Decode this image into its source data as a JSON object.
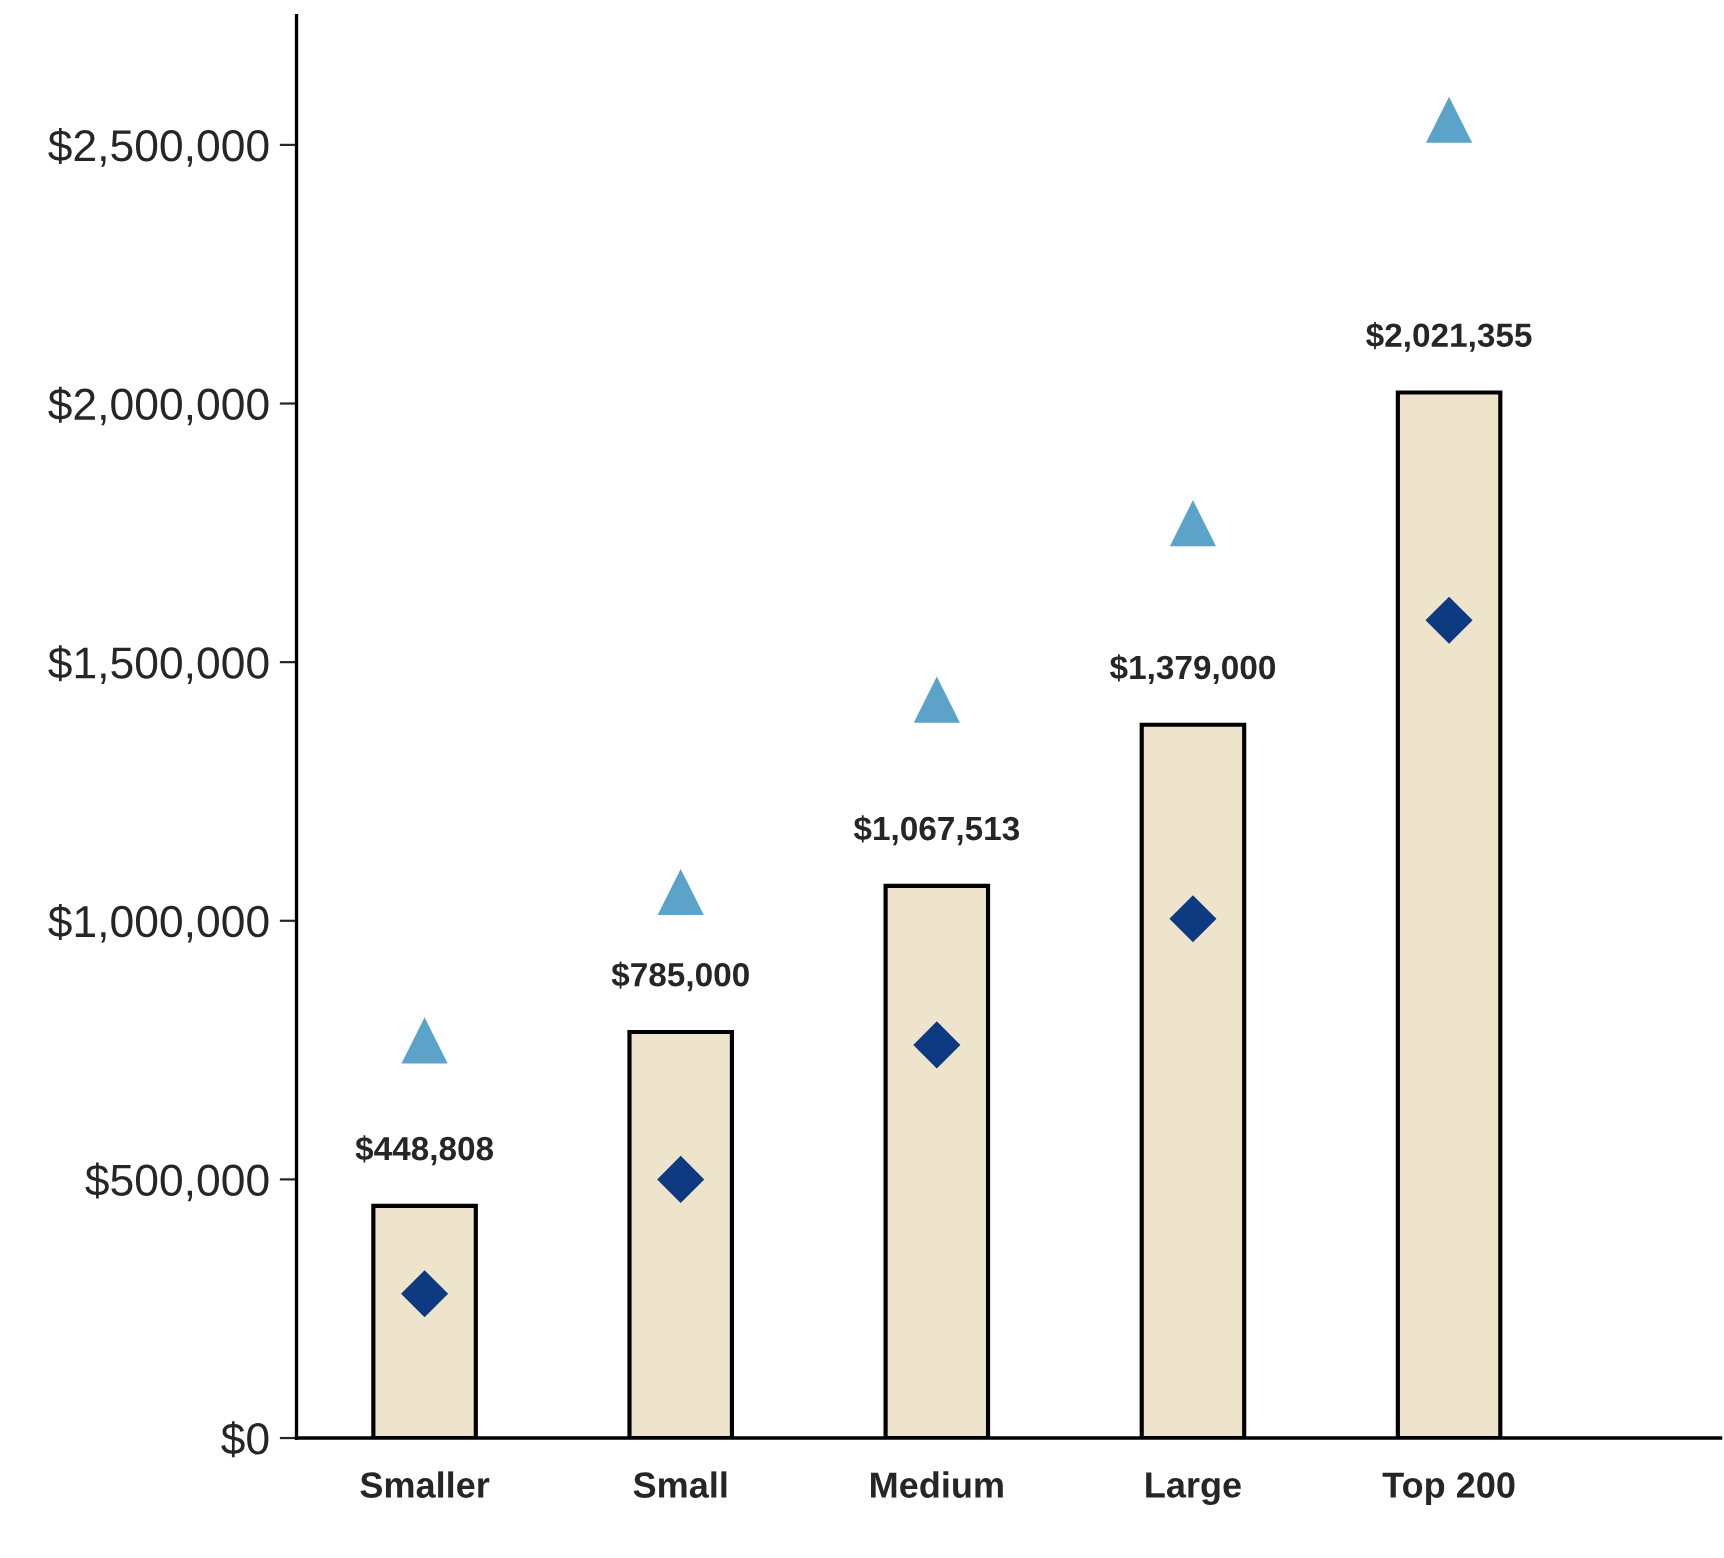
{
  "chart_data": {
    "type": "bar",
    "categories": [
      "Smaller",
      "Small",
      "Medium",
      "Large",
      "Top 200"
    ],
    "series": [
      {
        "color": "#ede4cb",
        "values": [
          448808,
          785000,
          1067513,
          1379000,
          2021355
        ],
        "value_labels": [
          "$448,808",
          "$785,000",
          "$1,067,513",
          "$1,379,000",
          "$2,021,355"
        ]
      },
      {
        "type": "scatter",
        "marker": "triangle",
        "color": "#5ba3c8",
        "values": [
          767000,
          1054000,
          1426000,
          1767000,
          2547000
        ]
      },
      {
        "type": "scatter",
        "marker": "diamond",
        "color": "#0d3a80",
        "values": [
          279000,
          500000,
          760000,
          1004000,
          1581000
        ]
      }
    ],
    "ylim": [
      0,
      2750000
    ],
    "yticks": [
      {
        "value": 0,
        "label": "$0"
      },
      {
        "value": 500000,
        "label": "$500,000"
      },
      {
        "value": 1000000,
        "label": "$1,000,000"
      },
      {
        "value": 1500000,
        "label": "$1,500,000"
      },
      {
        "value": 2000000,
        "label": "$2,000,000"
      },
      {
        "value": 2500000,
        "label": "$2,500,000"
      }
    ],
    "grid": false,
    "legend": false
  }
}
